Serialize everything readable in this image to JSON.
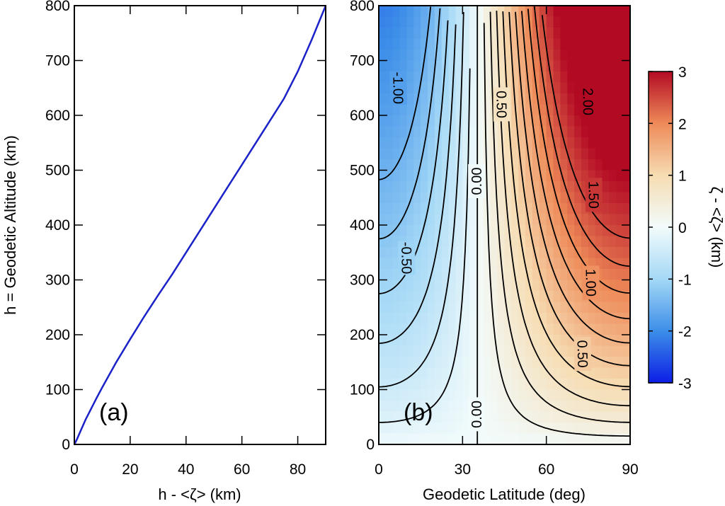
{
  "chart_data": [
    {
      "type": "line",
      "panel_label": "(a)",
      "xlabel": "h - <ζ> (km)",
      "ylabel": "h = Geodetic Altitude (km)",
      "xlim": [
        0,
        90
      ],
      "ylim": [
        0,
        800
      ],
      "xticks": [
        0,
        20,
        40,
        60,
        80
      ],
      "yticks": [
        0,
        100,
        200,
        300,
        400,
        500,
        600,
        700,
        800
      ],
      "series": [
        {
          "name": "h - <ζ>",
          "color": "#1a22c8",
          "points": [
            [
              0,
              0
            ],
            [
              1,
              10
            ],
            [
              2,
              22
            ],
            [
              4,
              45
            ],
            [
              6,
              65
            ],
            [
              8,
              85
            ],
            [
              10,
              104
            ],
            [
              15,
              150
            ],
            [
              20,
              192
            ],
            [
              25,
              233
            ],
            [
              30,
              272
            ],
            [
              35,
              310
            ],
            [
              40,
              350
            ],
            [
              45,
              390
            ],
            [
              50,
              430
            ],
            [
              55,
              470
            ],
            [
              60,
              510
            ],
            [
              65,
              550
            ],
            [
              70,
              590
            ],
            [
              75,
              630
            ],
            [
              80,
              680
            ],
            [
              85,
              738
            ],
            [
              90,
              800
            ]
          ]
        }
      ]
    },
    {
      "type": "contour",
      "panel_label": "(b)",
      "xlabel": "Geodetic Latitude (deg)",
      "xlim": [
        0,
        90
      ],
      "ylim": [
        0,
        800
      ],
      "xticks": [
        0,
        30,
        60,
        90
      ],
      "yticks": [
        0,
        100,
        200,
        300,
        400,
        500,
        600,
        700,
        800
      ],
      "zero_latitude": 35.3,
      "field": "ζ - <ζ> (km)",
      "field_range": [
        -3,
        3
      ],
      "colorbar": {
        "label": "ζ - <ζ> (km)",
        "ticks": [
          -3,
          -2,
          -1,
          0,
          1,
          2,
          3
        ],
        "colors": [
          "#0d1ee6",
          "#3c8ee8",
          "#a4d8f6",
          "#f2fbfb",
          "#f6dcb2",
          "#ee8a58",
          "#b30a24"
        ]
      },
      "contour_labels": [
        {
          "text": "-1.00",
          "lat": 7,
          "alt": 650
        },
        {
          "text": "-0.50",
          "lat": 10,
          "alt": 340
        },
        {
          "text": "0.00",
          "lat": 35,
          "alt": 480
        },
        {
          "text": "0.00",
          "lat": 35,
          "alt": 55
        },
        {
          "text": "0.50",
          "lat": 44,
          "alt": 620
        },
        {
          "text": "0.50",
          "lat": 73,
          "alt": 165
        },
        {
          "text": "1.00",
          "lat": 76,
          "alt": 295
        },
        {
          "text": "1.50",
          "lat": 77,
          "alt": 455
        },
        {
          "text": "2.00",
          "lat": 75,
          "alt": 625
        }
      ],
      "contour_levels": [
        -1.5,
        -1.25,
        -1,
        -0.75,
        -0.5,
        -0.25,
        0,
        0.25,
        0.5,
        0.75,
        1,
        1.25,
        1.5,
        1.75,
        2,
        2.25,
        2.5
      ]
    }
  ]
}
